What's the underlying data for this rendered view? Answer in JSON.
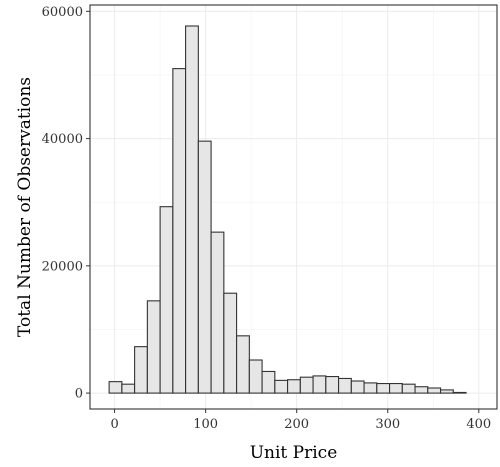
{
  "chart_data": {
    "type": "bar",
    "title": "",
    "xlabel": "Unit Price",
    "ylabel": "Total Number of Observations",
    "bin_width": 14,
    "bins_start": -6,
    "x_ticks": [
      0,
      100,
      200,
      300,
      400
    ],
    "y_ticks": [
      0,
      20000,
      40000,
      60000
    ],
    "xlim": [
      -27,
      420
    ],
    "ylim": [
      -2500,
      61000
    ],
    "grid": true,
    "legend": "none",
    "colors": {
      "fill": "#e6e6e6",
      "stroke": "#333333"
    },
    "values": [
      1800,
      1400,
      7300,
      14500,
      29300,
      51000,
      57700,
      39600,
      25300,
      15700,
      9000,
      5200,
      3400,
      2000,
      2100,
      2500,
      2700,
      2600,
      2300,
      1900,
      1600,
      1500,
      1500,
      1400,
      1000,
      800,
      500,
      100
    ]
  }
}
